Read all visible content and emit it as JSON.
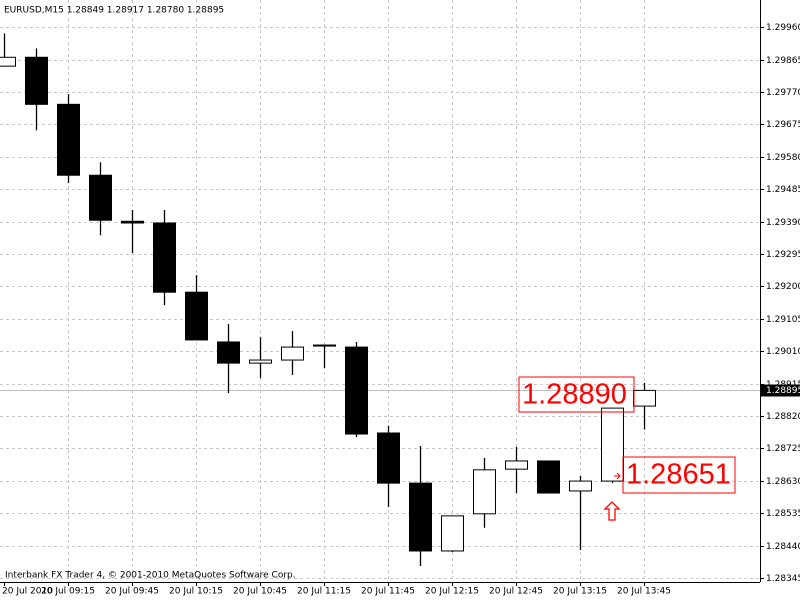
{
  "chart_data": {
    "type": "candlestick",
    "header": "EURUSD,M15  1.28849 1.28917 1.28780 1.28895",
    "footer": "Interbank FX Trader 4, © 2001-2010 MetaQuotes Software Corp.",
    "categories": [
      "20 Jul 2010",
      null,
      "20 Jul 09:15",
      null,
      "20 Jul 09:45",
      null,
      "20 Jul 10:15",
      null,
      "20 Jul 10:45",
      null,
      "20 Jul 11:15",
      null,
      "20 Jul 11:45",
      null,
      "20 Jul 12:15",
      null,
      "20 Jul 12:45",
      null,
      "20 Jul 13:15",
      null,
      "20 Jul 13:45"
    ],
    "open": [
      1.29846,
      1.29872,
      1.29734,
      1.29526,
      1.29391,
      1.29386,
      1.29183,
      1.29037,
      1.28975,
      1.28984,
      1.29025,
      1.29022,
      1.2877,
      1.28623,
      1.28424,
      1.28533,
      1.28664,
      1.28688,
      1.286,
      1.28629,
      1.28849
    ],
    "high": [
      1.29942,
      1.29898,
      1.29764,
      1.29564,
      1.29424,
      1.29424,
      1.29233,
      1.2909,
      1.29051,
      1.29069,
      1.29028,
      1.29037,
      1.28791,
      1.28732,
      1.28527,
      1.28697,
      1.28729,
      1.28688,
      1.28644,
      1.28843,
      1.28917
    ],
    "low": [
      1.29846,
      1.29658,
      1.29503,
      1.2935,
      1.29298,
      1.29145,
      1.29043,
      1.28887,
      1.28931,
      1.2894,
      1.28961,
      1.28758,
      1.28553,
      1.2838,
      1.28421,
      1.28492,
      1.28594,
      1.28594,
      1.28427,
      1.28623,
      1.2878
    ],
    "close": [
      1.29872,
      1.29734,
      1.29526,
      1.29394,
      1.29386,
      1.29183,
      1.29043,
      1.28975,
      1.28984,
      1.29022,
      1.29028,
      1.28767,
      1.28623,
      1.28424,
      1.28527,
      1.28662,
      1.28688,
      1.28594,
      1.28629,
      1.28843,
      1.28895
    ],
    "ylim": [
      1.28333,
      1.3004
    ],
    "yticks": [
      {
        "value": 1.2996,
        "label": "1.29960"
      },
      {
        "value": 1.29865,
        "label": "1.29865"
      },
      {
        "value": 1.2977,
        "label": "1.29770"
      },
      {
        "value": 1.29675,
        "label": "1.29675"
      },
      {
        "value": 1.2958,
        "label": "1.29580"
      },
      {
        "value": 1.29485,
        "label": "1.29485"
      },
      {
        "value": 1.2939,
        "label": "1.29390"
      },
      {
        "value": 1.29295,
        "label": "1.29295"
      },
      {
        "value": 1.292,
        "label": "1.29200"
      },
      {
        "value": 1.29105,
        "label": "1.29105"
      },
      {
        "value": 1.2901,
        "label": "1.29010"
      },
      {
        "value": 1.28915,
        "label": "1.28915"
      },
      {
        "value": 1.2882,
        "label": "1.28820"
      },
      {
        "value": 1.28725,
        "label": "1.28725"
      },
      {
        "value": 1.2863,
        "label": "1.28630"
      },
      {
        "value": 1.28535,
        "label": "1.28535"
      },
      {
        "value": 1.2844,
        "label": "1.28440"
      },
      {
        "value": 1.28345,
        "label": "1.28345"
      }
    ],
    "current_price": {
      "value": 1.28895,
      "label": "1.28895"
    },
    "annotations": [
      "1.28890",
      "1.28651"
    ],
    "grid": true
  }
}
